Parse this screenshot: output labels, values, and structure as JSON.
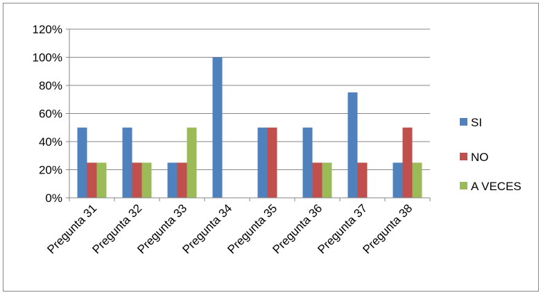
{
  "chart_data": {
    "type": "bar",
    "categories": [
      "Pregunta 31",
      "Pregunta 32",
      "Pregunta 33",
      "Pregunta 34",
      "Pregunta 35",
      "Pregunta 36",
      "Pregunta 37",
      "Pregunta 38"
    ],
    "series": [
      {
        "name": "SI",
        "color": "#4F81BD",
        "values": [
          50,
          50,
          25,
          100,
          50,
          50,
          75,
          25
        ]
      },
      {
        "name": "NO",
        "color": "#C0504D",
        "values": [
          25,
          25,
          25,
          0,
          50,
          25,
          25,
          50
        ]
      },
      {
        "name": "A VECES",
        "color": "#9BBB59",
        "values": [
          25,
          25,
          50,
          0,
          0,
          25,
          0,
          25
        ]
      }
    ],
    "y_ticks": [
      "0%",
      "20%",
      "40%",
      "60%",
      "80%",
      "100%",
      "120%"
    ],
    "ylim": [
      0,
      120
    ],
    "y_unit": "%",
    "grid": true,
    "legend_position": "right",
    "title": "",
    "xlabel": "",
    "ylabel": ""
  }
}
